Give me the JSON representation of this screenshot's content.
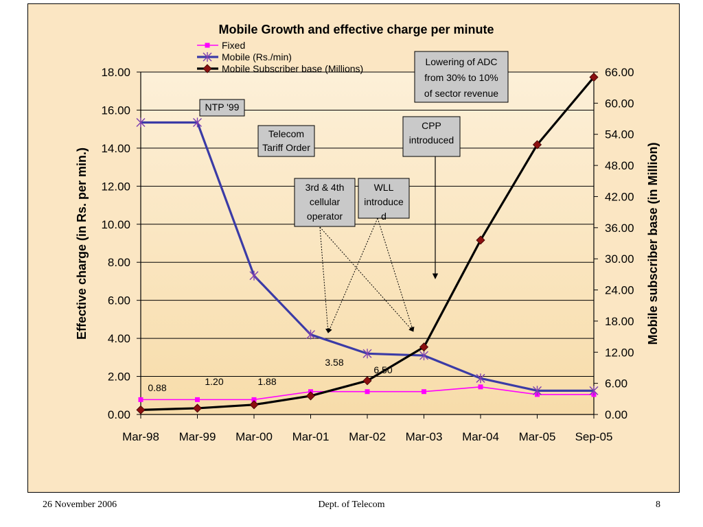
{
  "footer": {
    "date": "26 November 2006",
    "department": "Dept. of Telecom",
    "page_number": "8"
  },
  "chart_data": {
    "type": "line",
    "title": "Mobile Growth and effective charge per minute",
    "categories": [
      "Mar-98",
      "Mar-99",
      "Mar-00",
      "Mar-01",
      "Mar-02",
      "Mar-03",
      "Mar-04",
      "Mar-05",
      "Sep-05"
    ],
    "y_left": {
      "label": "Effective charge (in Rs. per min.)",
      "range": [
        0,
        18
      ],
      "ticks": [
        "0.00",
        "2.00",
        "4.00",
        "6.00",
        "8.00",
        "10.00",
        "12.00",
        "14.00",
        "16.00",
        "18.00"
      ]
    },
    "y_right": {
      "label": "Mobile subscriber base (in Million)",
      "range": [
        0,
        66
      ],
      "ticks": [
        "0.00",
        "6.00",
        "12.00",
        "18.00",
        "24.00",
        "30.00",
        "36.00",
        "42.00",
        "48.00",
        "54.00",
        "60.00",
        "66.00"
      ]
    },
    "grid": true,
    "legend_position": "top-center",
    "series": [
      {
        "name": "Fixed",
        "axis": "left",
        "color": "#ff00ff",
        "marker": "square",
        "values": [
          0.78,
          0.78,
          0.78,
          1.2,
          1.2,
          1.2,
          1.45,
          1.05,
          1.05
        ]
      },
      {
        "name": "Mobile (Rs./min)",
        "axis": "left",
        "color": "#3b3ba6",
        "marker": "asterisk",
        "values": [
          15.35,
          15.35,
          7.3,
          4.2,
          3.2,
          3.1,
          1.9,
          1.25,
          1.25
        ]
      },
      {
        "name": "Mobile Subscriber base (Millions)",
        "axis": "right",
        "color": "#000000",
        "marker": "diamond",
        "values": [
          0.88,
          1.2,
          1.88,
          3.58,
          6.5,
          13.0,
          33.6,
          52.0,
          65.0
        ]
      }
    ],
    "data_labels": [
      "0.88",
      "1.20",
      "1.88",
      "3.58",
      "6.50"
    ],
    "annotations": {
      "ntp": "NTP '99",
      "tariff": [
        "Telecom",
        "Tariff Order"
      ],
      "cellular": [
        "3rd & 4th",
        "cellular",
        "operator"
      ],
      "wll": [
        "WLL",
        "introduce",
        "d"
      ],
      "cpp": [
        "CPP",
        "introduced"
      ],
      "adc": [
        "Lowering of ADC",
        "from 30% to 10%",
        "of sector revenue"
      ]
    }
  }
}
